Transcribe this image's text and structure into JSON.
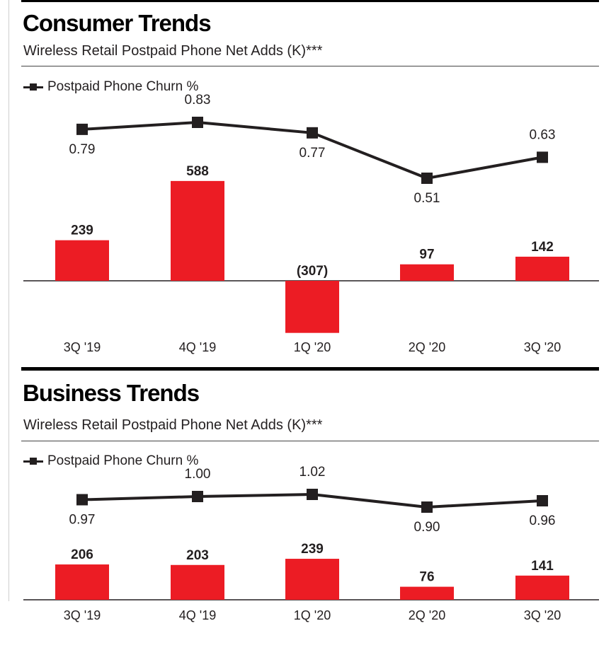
{
  "colors": {
    "bar": "#ec1c24",
    "line": "#231f20",
    "axis": "#231f20"
  },
  "chart_data": [
    {
      "type": "bar+line",
      "title": "Consumer Trends",
      "subtitle": "Wireless Retail Postpaid Phone Net Adds (K)***",
      "legend": "Postpaid Phone Churn %",
      "legend_position": "top-left",
      "categories": [
        "3Q '19",
        "4Q '19",
        "1Q '20",
        "2Q '20",
        "3Q '20"
      ],
      "series": [
        {
          "name": "Wireless Retail Postpaid Phone Net Adds (K)",
          "type": "bar",
          "values": [
            239,
            588,
            -307,
            97,
            142
          ],
          "labels": [
            "239",
            "588",
            "(307)",
            "97",
            "142"
          ]
        },
        {
          "name": "Postpaid Phone Churn %",
          "type": "line",
          "values": [
            0.79,
            0.83,
            0.77,
            0.51,
            0.63
          ],
          "labels": [
            "0.79",
            "0.83",
            "0.77",
            "0.51",
            "0.63"
          ]
        }
      ]
    },
    {
      "type": "bar+line",
      "title": "Business Trends",
      "subtitle": "Wireless Retail Postpaid Phone Net Adds (K)***",
      "legend": "Postpaid Phone Churn %",
      "legend_position": "top-left",
      "categories": [
        "3Q '19",
        "4Q '19",
        "1Q '20",
        "2Q '20",
        "3Q '20"
      ],
      "series": [
        {
          "name": "Wireless Retail Postpaid Phone Net Adds (K)",
          "type": "bar",
          "values": [
            206,
            203,
            239,
            76,
            141
          ],
          "labels": [
            "206",
            "203",
            "239",
            "76",
            "141"
          ]
        },
        {
          "name": "Postpaid Phone Churn %",
          "type": "line",
          "values": [
            0.97,
            1.0,
            1.02,
            0.9,
            0.96
          ],
          "labels": [
            "0.97",
            "1.00",
            "1.02",
            "0.90",
            "0.96"
          ]
        }
      ]
    }
  ]
}
